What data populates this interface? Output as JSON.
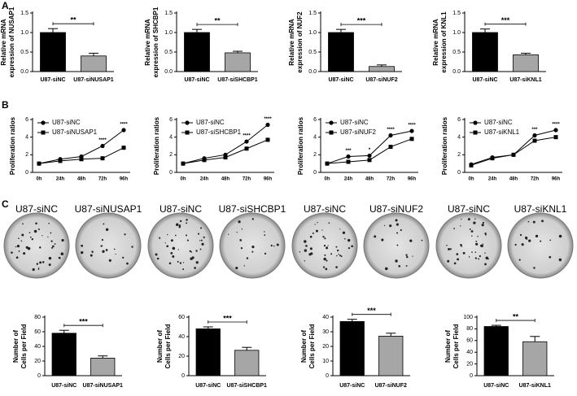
{
  "panel_labels": [
    "A",
    "B",
    "C"
  ],
  "colony_labels": [
    [
      "U87-siNC",
      "U87-siNUSAP1"
    ],
    [
      "U87-siNC",
      "U87-siSHCBP1"
    ],
    [
      "U87-siNC",
      "U87-siNUF2"
    ],
    [
      "U87-siNC",
      "U87-siKNL1"
    ]
  ],
  "chart_data": [
    {
      "type": "bar",
      "ylabel": [
        "Relative mRNA",
        "expression of NUSAP1"
      ],
      "categories": [
        "U87-siNC",
        "U87-siNUSAP1"
      ],
      "values": [
        1.0,
        0.4
      ],
      "errors": [
        0.1,
        0.07
      ],
      "colors": [
        "#000000",
        "#a6a6a6"
      ],
      "ylim": [
        0,
        1.5
      ],
      "yticks": [
        {
          "value": 0,
          "label": "0.0"
        },
        {
          "value": 0.5,
          "label": "0.5"
        },
        {
          "value": 1,
          "label": "1.0"
        },
        {
          "value": 1.5,
          "label": "1.5"
        }
      ],
      "annotation": "**"
    },
    {
      "type": "bar",
      "ylabel": [
        "Relative mRNA",
        "expression of SHCBP1"
      ],
      "categories": [
        "U87-siNC",
        "U87-siSHCBP1"
      ],
      "values": [
        1.0,
        0.48
      ],
      "errors": [
        0.08,
        0.04
      ],
      "colors": [
        "#000000",
        "#a6a6a6"
      ],
      "ylim": [
        0,
        1.5
      ],
      "yticks": [
        {
          "value": 0,
          "label": "0.0"
        },
        {
          "value": 0.5,
          "label": "0.5"
        },
        {
          "value": 1,
          "label": "1.0"
        },
        {
          "value": 1.5,
          "label": "1.5"
        }
      ],
      "annotation": "**"
    },
    {
      "type": "bar",
      "ylabel": [
        "Relative mRNA",
        "expression of NUF2"
      ],
      "categories": [
        "U87-siNC",
        "U87-siNUF2"
      ],
      "values": [
        1.0,
        0.13
      ],
      "errors": [
        0.08,
        0.04
      ],
      "colors": [
        "#000000",
        "#a6a6a6"
      ],
      "ylim": [
        0,
        1.5
      ],
      "yticks": [
        {
          "value": 0,
          "label": "0.0"
        },
        {
          "value": 0.5,
          "label": "0.5"
        },
        {
          "value": 1,
          "label": "1.0"
        },
        {
          "value": 1.5,
          "label": "1.5"
        }
      ],
      "annotation": "***"
    },
    {
      "type": "bar",
      "ylabel": [
        "Relative mRNA",
        "expression of KNL1"
      ],
      "categories": [
        "U87-siNC",
        "U87-siKNL1"
      ],
      "values": [
        1.0,
        0.43
      ],
      "errors": [
        0.09,
        0.04
      ],
      "colors": [
        "#000000",
        "#a6a6a6"
      ],
      "ylim": [
        0,
        1.5
      ],
      "yticks": [
        {
          "value": 0,
          "label": "0.0"
        },
        {
          "value": 0.5,
          "label": "0.5"
        },
        {
          "value": 1,
          "label": "1.0"
        },
        {
          "value": 1.5,
          "label": "1.5"
        }
      ],
      "annotation": "***"
    },
    {
      "type": "line",
      "ylabel": "Proliferation ratios",
      "categories": [
        "0h",
        "24h",
        "48h",
        "72h",
        "96h"
      ],
      "series": [
        {
          "name": "U87-siNC",
          "color": "#000000",
          "marker": "circle",
          "values": [
            1.0,
            1.5,
            1.8,
            3.0,
            4.8
          ]
        },
        {
          "name": "U87-siNUSAP1",
          "color": "#000000",
          "marker": "square",
          "values": [
            1.0,
            1.3,
            1.5,
            1.6,
            2.8
          ]
        }
      ],
      "ylim": [
        0,
        6
      ],
      "yticks": [
        0,
        2,
        4,
        6
      ],
      "annotations": [
        null,
        null,
        null,
        "****",
        "****"
      ],
      "legend": "upper left"
    },
    {
      "type": "line",
      "ylabel": "Proliferation ratios",
      "categories": [
        "0h",
        "24h",
        "48h",
        "72h",
        "96h"
      ],
      "series": [
        {
          "name": "U87-siNC",
          "color": "#000000",
          "marker": "circle",
          "values": [
            1.0,
            1.6,
            2.0,
            3.5,
            5.4
          ]
        },
        {
          "name": "U87-siSHCBP1",
          "color": "#000000",
          "marker": "square",
          "values": [
            1.0,
            1.4,
            1.7,
            2.7,
            3.7
          ]
        }
      ],
      "ylim": [
        0,
        6
      ],
      "yticks": [
        0,
        2,
        4,
        6
      ],
      "annotations": [
        null,
        null,
        null,
        "****",
        "****"
      ],
      "legend": "upper left"
    },
    {
      "type": "line",
      "ylabel": "Proliferation ratios",
      "categories": [
        "0h",
        "24h",
        "48h",
        "72h",
        "96h"
      ],
      "series": [
        {
          "name": "U87-siNC",
          "color": "#000000",
          "marker": "circle",
          "values": [
            1.0,
            1.8,
            1.9,
            4.2,
            4.7
          ]
        },
        {
          "name": "U87-siNUF2",
          "color": "#000000",
          "marker": "square",
          "values": [
            1.0,
            1.2,
            1.4,
            2.9,
            3.8
          ]
        }
      ],
      "ylim": [
        0,
        6
      ],
      "yticks": [
        0,
        2,
        4,
        6
      ],
      "annotations": [
        null,
        "***",
        "*",
        "****",
        "****"
      ],
      "legend": "upper left"
    },
    {
      "type": "line",
      "ylabel": "Proliferation ratios",
      "categories": [
        "0h",
        "24h",
        "48h",
        "72h",
        "96h"
      ],
      "series": [
        {
          "name": "U87-siNC",
          "color": "#000000",
          "marker": "circle",
          "values": [
            0.9,
            1.7,
            2.0,
            4.2,
            4.8
          ]
        },
        {
          "name": "U87-siKNL1",
          "color": "#000000",
          "marker": "square",
          "values": [
            0.8,
            1.6,
            2.0,
            3.6,
            4.0
          ]
        }
      ],
      "ylim": [
        0,
        6
      ],
      "yticks": [
        0,
        2,
        4,
        6
      ],
      "annotations": [
        null,
        null,
        null,
        "***",
        "****"
      ],
      "legend": "upper left"
    },
    {
      "type": "bar",
      "ylabel": [
        "Number of",
        "Cells per Field"
      ],
      "categories": [
        "U87-siNC",
        "U87-siNUSAP1"
      ],
      "values": [
        58,
        24
      ],
      "errors": [
        4,
        3
      ],
      "colors": [
        "#000000",
        "#a6a6a6"
      ],
      "ylim": [
        0,
        80
      ],
      "yticks": [
        0,
        20,
        40,
        60,
        80
      ],
      "annotation": "***"
    },
    {
      "type": "bar",
      "ylabel": [
        "Number of",
        "Cells per Field"
      ],
      "categories": [
        "U87-siNC",
        "U87-siSHCBP1"
      ],
      "values": [
        48,
        26
      ],
      "errors": [
        2,
        3
      ],
      "colors": [
        "#000000",
        "#a6a6a6"
      ],
      "ylim": [
        0,
        60
      ],
      "yticks": [
        0,
        20,
        40,
        60
      ],
      "annotation": "***"
    },
    {
      "type": "bar",
      "ylabel": [
        "Number of",
        "Cells per Field"
      ],
      "categories": [
        "U87-siNC",
        "U87-siNUF2"
      ],
      "values": [
        37,
        27
      ],
      "errors": [
        1.5,
        2
      ],
      "colors": [
        "#000000",
        "#a6a6a6"
      ],
      "ylim": [
        0,
        40
      ],
      "yticks": [
        0,
        10,
        20,
        30,
        40
      ],
      "annotation": "***"
    },
    {
      "type": "bar",
      "ylabel": [
        "Number of",
        "Cells per Field"
      ],
      "categories": [
        "U87-siNC",
        "U87-siKNL1"
      ],
      "values": [
        84,
        58
      ],
      "errors": [
        2,
        9
      ],
      "colors": [
        "#000000",
        "#a6a6a6"
      ],
      "ylim": [
        0,
        100
      ],
      "yticks": [
        0,
        20,
        40,
        60,
        80,
        100
      ],
      "annotation": "**"
    }
  ]
}
